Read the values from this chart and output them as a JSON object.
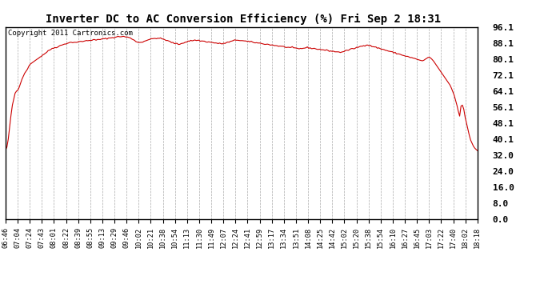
{
  "title": "Inverter DC to AC Conversion Efficiency (%) Fri Sep 2 18:31",
  "copyright_text": "Copyright 2011 Cartronics.com",
  "line_color": "#cc0000",
  "background_color": "#ffffff",
  "plot_bg_color": "#ffffff",
  "grid_color": "#aaaaaa",
  "yticks": [
    0.0,
    8.0,
    16.0,
    24.0,
    32.0,
    40.1,
    48.1,
    56.1,
    64.1,
    72.1,
    80.1,
    88.1,
    96.1
  ],
  "ylim": [
    0.0,
    96.1
  ],
  "xtick_labels": [
    "06:46",
    "07:04",
    "07:24",
    "07:43",
    "08:01",
    "08:22",
    "08:39",
    "08:55",
    "09:13",
    "09:29",
    "09:46",
    "10:02",
    "10:21",
    "10:38",
    "10:54",
    "11:13",
    "11:30",
    "11:49",
    "12:07",
    "12:24",
    "12:41",
    "12:59",
    "13:17",
    "13:34",
    "13:51",
    "14:08",
    "14:25",
    "14:42",
    "15:02",
    "15:20",
    "15:38",
    "15:54",
    "16:10",
    "16:27",
    "16:45",
    "17:03",
    "17:22",
    "17:40",
    "18:02",
    "18:18"
  ],
  "data_y": [
    34.5,
    36.0,
    40.0,
    46.0,
    52.0,
    57.0,
    60.0,
    63.0,
    64.0,
    64.5,
    66.0,
    68.0,
    70.0,
    71.5,
    73.0,
    74.0,
    75.0,
    76.5,
    77.5,
    78.0,
    78.5,
    79.0,
    79.5,
    80.0,
    80.5,
    81.0,
    81.5,
    82.0,
    82.5,
    83.0,
    83.5,
    84.0,
    84.5,
    85.0,
    85.3,
    85.6,
    85.8,
    86.0,
    86.2,
    86.5,
    86.8,
    87.0,
    87.3,
    87.6,
    87.8,
    88.0,
    88.2,
    88.3,
    88.4,
    88.5,
    88.4,
    88.5,
    88.5,
    88.6,
    88.7,
    88.8,
    88.9,
    89.0,
    89.1,
    89.2,
    89.3,
    89.4,
    89.5,
    89.6,
    89.7,
    89.6,
    89.5,
    89.7,
    89.8,
    89.9,
    90.0,
    90.1,
    90.2,
    90.3,
    90.4,
    90.5,
    90.6,
    90.7,
    90.8,
    90.9,
    91.0,
    91.1,
    91.2,
    91.3,
    91.3,
    91.4,
    91.3,
    91.2,
    91.1,
    91.0,
    90.8,
    90.5,
    90.2,
    89.8,
    89.5,
    89.0,
    88.5,
    88.3,
    88.4,
    88.5,
    88.7,
    89.0,
    89.2,
    89.5,
    89.7,
    89.8,
    90.0,
    90.2,
    90.3,
    90.4,
    90.5,
    90.5,
    90.4,
    90.3,
    90.2,
    90.0,
    89.8,
    89.5,
    89.2,
    89.0,
    88.7,
    88.4,
    88.2,
    88.0,
    87.8,
    87.6,
    87.5,
    87.5,
    87.8,
    88.0,
    88.3,
    88.5,
    88.7,
    89.0,
    89.1,
    89.2,
    89.3,
    89.4,
    89.5,
    89.5,
    89.4,
    89.3,
    89.2,
    89.1,
    89.0,
    88.9,
    88.8,
    88.7,
    88.6,
    88.5,
    88.4,
    88.3,
    88.2,
    88.1,
    88.0,
    87.9,
    87.8,
    87.7,
    87.8,
    87.9,
    88.0,
    88.2,
    88.4,
    88.6,
    88.8,
    89.0,
    89.2,
    89.4,
    89.5,
    89.6,
    89.5,
    89.4,
    89.3,
    89.2,
    89.1,
    89.0,
    88.9,
    88.8,
    88.7,
    88.6,
    88.5,
    88.4,
    88.3,
    88.2,
    88.1,
    88.0,
    87.9,
    87.8,
    87.7,
    87.6,
    87.5,
    87.4,
    87.3,
    87.2,
    87.1,
    87.0,
    86.9,
    86.8,
    86.7,
    86.6,
    86.5,
    86.4,
    86.3,
    86.2,
    86.1,
    86.0,
    85.9,
    85.8,
    85.8,
    85.7,
    85.6,
    85.5,
    85.4,
    85.3,
    85.2,
    85.3,
    85.4,
    85.5,
    85.6,
    85.7,
    85.8,
    85.7,
    85.6,
    85.5,
    85.4,
    85.3,
    85.2,
    85.1,
    85.0,
    84.9,
    84.8,
    84.7,
    84.6,
    84.5,
    84.4,
    84.3,
    84.2,
    84.1,
    84.0,
    83.9,
    83.8,
    83.7,
    83.6,
    83.5,
    83.5,
    83.6,
    83.8,
    84.0,
    84.2,
    84.4,
    84.6,
    84.8,
    85.0,
    85.2,
    85.4,
    85.6,
    85.8,
    86.0,
    86.2,
    86.4,
    86.6,
    86.8,
    87.0,
    87.2,
    87.1,
    86.9,
    86.7,
    86.5,
    86.3,
    86.1,
    85.9,
    85.7,
    85.5,
    85.3,
    85.1,
    84.9,
    84.7,
    84.5,
    84.3,
    84.1,
    83.9,
    83.7,
    83.5,
    83.3,
    83.1,
    82.9,
    82.7,
    82.5,
    82.3,
    82.1,
    81.9,
    81.7,
    81.5,
    81.3,
    81.1,
    80.9,
    80.7,
    80.5,
    80.3,
    80.1,
    79.9,
    79.7,
    79.5,
    79.3,
    79.2,
    79.5,
    80.0,
    80.5,
    80.8,
    81.0,
    80.5,
    79.8,
    79.0,
    78.0,
    77.0,
    76.0,
    75.0,
    74.0,
    73.0,
    72.0,
    71.0,
    70.0,
    69.0,
    68.0,
    67.0,
    65.5,
    63.8,
    62.0,
    59.5,
    57.0,
    54.0,
    51.5,
    56.5,
    57.0,
    55.0,
    51.0,
    48.0,
    45.0,
    42.0,
    39.5,
    38.0,
    36.5,
    35.5,
    34.8,
    34.2
  ]
}
